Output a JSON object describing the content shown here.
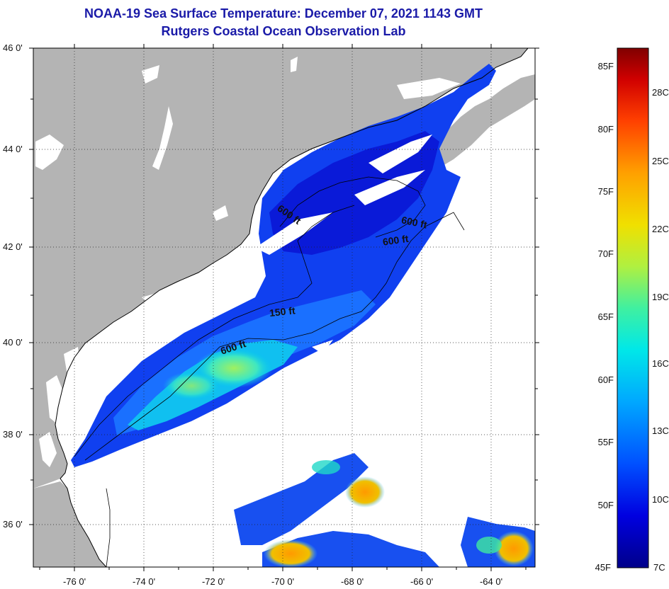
{
  "title": {
    "line1": "NOAA-19 Sea Surface Temperature:  December 07, 2021 1143 GMT",
    "line2": "Rutgers Coastal Ocean Observation Lab"
  },
  "map": {
    "lat_labels": [
      "46 0'",
      "44 0'",
      "42 0'",
      "40 0'",
      "38 0'",
      "36 0'"
    ],
    "lon_labels": [
      "-76 0'",
      "-74 0'",
      "-72 0'",
      "-70 0'",
      "-68 0'",
      "-66 0'",
      "-64 0'"
    ],
    "contour_labels": [
      "600 ft",
      "600 ft",
      "600 ft",
      "150 ft",
      "600 ft"
    ],
    "land_color": "#b4b4b4",
    "cloud_color": "#ffffff"
  },
  "colorbar": {
    "fahrenheit_labels": [
      "85F",
      "80F",
      "75F",
      "70F",
      "65F",
      "60F",
      "55F",
      "50F",
      "45F"
    ],
    "celsius_labels": [
      "28C",
      "25C",
      "22C",
      "19C",
      "16C",
      "13C",
      "10C",
      "7C"
    ],
    "colors": [
      "#00008a",
      "#0000e0",
      "#0050ff",
      "#00a8ff",
      "#00e8e8",
      "#40f0a0",
      "#b0f040",
      "#f0e000",
      "#ffa000",
      "#ff4000",
      "#d00000",
      "#800000"
    ]
  }
}
